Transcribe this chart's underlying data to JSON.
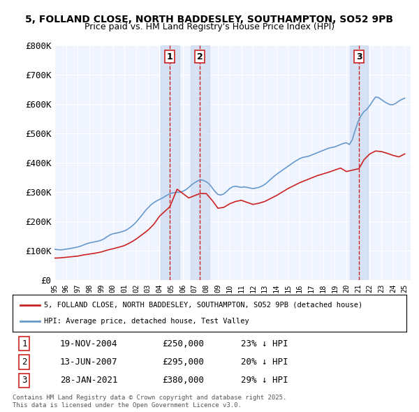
{
  "title_line1": "5, FOLLAND CLOSE, NORTH BADDESLEY, SOUTHAMPTON, SO52 9PB",
  "title_line2": "Price paid vs. HM Land Registry's House Price Index (HPI)",
  "ylabel": "",
  "ylim": [
    0,
    800000
  ],
  "yticks": [
    0,
    100000,
    200000,
    300000,
    400000,
    500000,
    600000,
    700000,
    800000
  ],
  "ytick_labels": [
    "£0",
    "£100K",
    "£200K",
    "£300K",
    "£400K",
    "£500K",
    "£600K",
    "£700K",
    "£800K"
  ],
  "xlim_start": 1995.0,
  "xlim_end": 2025.5,
  "background_color": "#ffffff",
  "plot_bg_color": "#f0f4ff",
  "grid_color": "#ffffff",
  "hpi_color": "#6699cc",
  "price_color": "#cc2222",
  "transaction_vline_color_fill": "#ccd9f0",
  "transaction_vline_color_dashed": "#cc2222",
  "transactions": [
    {
      "num": 1,
      "date": "19-NOV-2004",
      "year": 2004.88,
      "price": 250000,
      "pct": "23%",
      "dir": "↓"
    },
    {
      "num": 2,
      "date": "13-JUN-2007",
      "year": 2007.45,
      "price": 295000,
      "pct": "20%",
      "dir": "↓"
    },
    {
      "num": 3,
      "date": "28-JAN-2021",
      "year": 2021.08,
      "price": 380000,
      "pct": "29%",
      "dir": "↓"
    }
  ],
  "legend_line1": "5, FOLLAND CLOSE, NORTH BADDESLEY, SOUTHAMPTON, SO52 9PB (detached house)",
  "legend_line2": "HPI: Average price, detached house, Test Valley",
  "footnote": "Contains HM Land Registry data © Crown copyright and database right 2025.\nThis data is licensed under the Open Government Licence v3.0.",
  "hpi_data": {
    "years": [
      1995.0,
      1995.25,
      1995.5,
      1995.75,
      1996.0,
      1996.25,
      1996.5,
      1996.75,
      1997.0,
      1997.25,
      1997.5,
      1997.75,
      1998.0,
      1998.25,
      1998.5,
      1998.75,
      1999.0,
      1999.25,
      1999.5,
      1999.75,
      2000.0,
      2000.25,
      2000.5,
      2000.75,
      2001.0,
      2001.25,
      2001.5,
      2001.75,
      2002.0,
      2002.25,
      2002.5,
      2002.75,
      2003.0,
      2003.25,
      2003.5,
      2003.75,
      2004.0,
      2004.25,
      2004.5,
      2004.75,
      2005.0,
      2005.25,
      2005.5,
      2005.75,
      2006.0,
      2006.25,
      2006.5,
      2006.75,
      2007.0,
      2007.25,
      2007.5,
      2007.75,
      2008.0,
      2008.25,
      2008.5,
      2008.75,
      2009.0,
      2009.25,
      2009.5,
      2009.75,
      2010.0,
      2010.25,
      2010.5,
      2010.75,
      2011.0,
      2011.25,
      2011.5,
      2011.75,
      2012.0,
      2012.25,
      2012.5,
      2012.75,
      2013.0,
      2013.25,
      2013.5,
      2013.75,
      2014.0,
      2014.25,
      2014.5,
      2014.75,
      2015.0,
      2015.25,
      2015.5,
      2015.75,
      2016.0,
      2016.25,
      2016.5,
      2016.75,
      2017.0,
      2017.25,
      2017.5,
      2017.75,
      2018.0,
      2018.25,
      2018.5,
      2018.75,
      2019.0,
      2019.25,
      2019.5,
      2019.75,
      2020.0,
      2020.25,
      2020.5,
      2020.75,
      2021.0,
      2021.25,
      2021.5,
      2021.75,
      2022.0,
      2022.25,
      2022.5,
      2022.75,
      2023.0,
      2023.25,
      2023.5,
      2023.75,
      2024.0,
      2024.25,
      2024.5,
      2024.75,
      2025.0
    ],
    "values": [
      105000,
      104000,
      103000,
      104000,
      106000,
      107000,
      109000,
      111000,
      113000,
      116000,
      120000,
      124000,
      127000,
      129000,
      131000,
      133000,
      136000,
      141000,
      148000,
      154000,
      158000,
      160000,
      162000,
      165000,
      168000,
      173000,
      180000,
      188000,
      198000,
      210000,
      222000,
      235000,
      246000,
      256000,
      264000,
      270000,
      275000,
      280000,
      286000,
      292000,
      296000,
      298000,
      299000,
      300000,
      303000,
      308000,
      316000,
      325000,
      332000,
      338000,
      342000,
      340000,
      335000,
      328000,
      315000,
      302000,
      292000,
      290000,
      294000,
      302000,
      312000,
      318000,
      320000,
      318000,
      316000,
      318000,
      316000,
      314000,
      312000,
      314000,
      316000,
      320000,
      326000,
      334000,
      343000,
      352000,
      360000,
      367000,
      374000,
      381000,
      388000,
      395000,
      402000,
      408000,
      414000,
      418000,
      420000,
      422000,
      426000,
      430000,
      434000,
      438000,
      442000,
      446000,
      450000,
      452000,
      454000,
      458000,
      462000,
      466000,
      468000,
      462000,
      478000,
      510000,
      540000,
      560000,
      574000,
      582000,
      595000,
      610000,
      624000,
      622000,
      615000,
      608000,
      602000,
      598000,
      598000,
      603000,
      610000,
      616000,
      620000
    ]
  },
  "price_data": {
    "years": [
      1995.0,
      1995.5,
      1996.0,
      1996.5,
      1997.0,
      1997.5,
      1998.0,
      1998.5,
      1999.0,
      1999.5,
      2000.0,
      2000.5,
      2001.0,
      2001.5,
      2002.0,
      2002.5,
      2003.0,
      2003.5,
      2004.0,
      2004.88,
      2005.5,
      2006.0,
      2006.5,
      2007.45,
      2008.0,
      2008.5,
      2009.0,
      2009.5,
      2010.0,
      2010.5,
      2011.0,
      2011.5,
      2012.0,
      2012.5,
      2013.0,
      2013.5,
      2014.0,
      2014.5,
      2015.0,
      2015.5,
      2016.0,
      2016.5,
      2017.0,
      2017.5,
      2018.0,
      2018.5,
      2019.0,
      2019.5,
      2020.0,
      2021.08,
      2021.5,
      2022.0,
      2022.5,
      2023.0,
      2023.5,
      2024.0,
      2024.5,
      2025.0
    ],
    "values": [
      75000,
      76000,
      78000,
      80000,
      82000,
      86000,
      89000,
      92000,
      96000,
      102000,
      107000,
      112000,
      118000,
      128000,
      140000,
      155000,
      170000,
      190000,
      218000,
      250000,
      310000,
      295000,
      280000,
      295000,
      295000,
      272000,
      245000,
      248000,
      260000,
      268000,
      272000,
      265000,
      258000,
      262000,
      268000,
      278000,
      288000,
      300000,
      312000,
      322000,
      332000,
      340000,
      348000,
      356000,
      362000,
      368000,
      375000,
      382000,
      370000,
      380000,
      410000,
      430000,
      440000,
      438000,
      432000,
      425000,
      420000,
      430000
    ]
  }
}
